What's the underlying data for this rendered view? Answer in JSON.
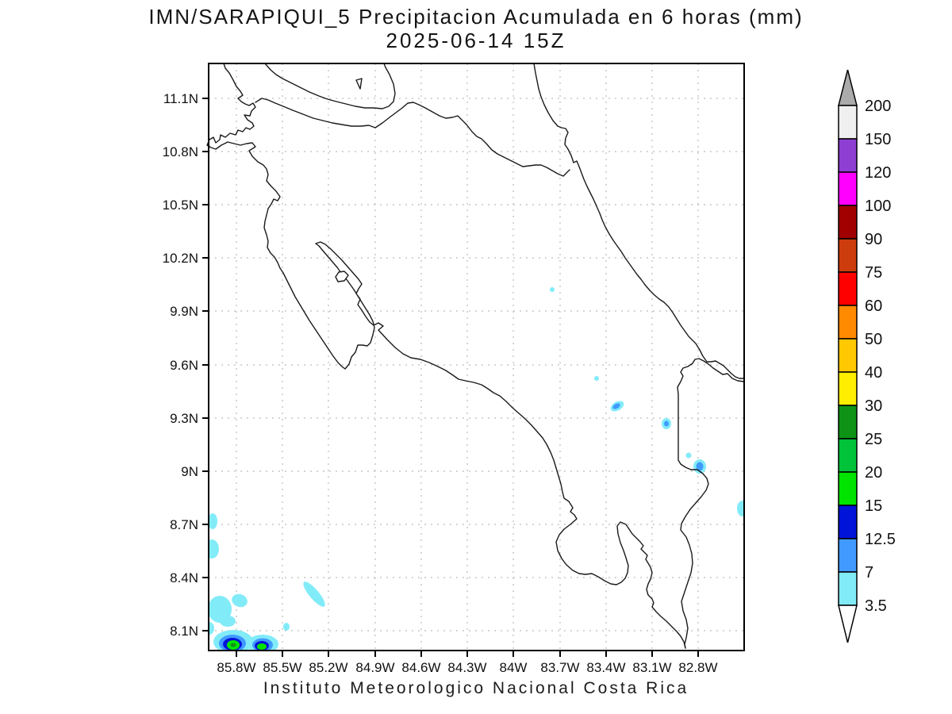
{
  "title": {
    "line1": "IMN/SARAPIQUI_5 Precipitacion Acumulada en 6 horas (mm)",
    "line2": "2025-06-14 15Z"
  },
  "footer": "Instituto Meteorologico Nacional Costa Rica",
  "axes": {
    "lat_ticks": [
      "11.1N",
      "10.8N",
      "10.5N",
      "10.2N",
      "9.9N",
      "9.6N",
      "9.3N",
      "9N",
      "8.7N",
      "8.4N",
      "8.1N"
    ],
    "lon_ticks": [
      "85.8W",
      "85.5W",
      "85.2W",
      "84.9W",
      "84.6W",
      "84.3W",
      "84W",
      "83.7W",
      "83.4W",
      "83.1W",
      "82.8W"
    ]
  },
  "colorbar": {
    "labels_top_to_bottom": [
      "200",
      "150",
      "120",
      "100",
      "90",
      "75",
      "60",
      "50",
      "40",
      "30",
      "25",
      "20",
      "15",
      "12.5",
      "7",
      "3.5"
    ],
    "segments_top_to_bottom": [
      {
        "range": "150-200",
        "color": "#F0F0F0"
      },
      {
        "range": "120-150",
        "color": "#8E3ED2"
      },
      {
        "range": "100-120",
        "color": "#FF00FF"
      },
      {
        "range": "90-100",
        "color": "#A00000"
      },
      {
        "range": "75-90",
        "color": "#CC3C0C"
      },
      {
        "range": "60-75",
        "color": "#FF0000"
      },
      {
        "range": "50-60",
        "color": "#FF8A00"
      },
      {
        "range": "40-50",
        "color": "#FFC800"
      },
      {
        "range": "30-40",
        "color": "#FFEE00"
      },
      {
        "range": "25-30",
        "color": "#0E9316"
      },
      {
        "range": "20-25",
        "color": "#00C33A"
      },
      {
        "range": "15-20",
        "color": "#00E400"
      },
      {
        "range": "12.5-15",
        "color": "#0013D9"
      },
      {
        "range": "7-12.5",
        "color": "#409AFF"
      },
      {
        "range": "3.5-7",
        "color": "#82EBF8"
      }
    ],
    "overflow_top_color": "#ABABAB",
    "underflow_bottom_color": "#FFFFFF"
  },
  "colors": {
    "cyan": "#82EBF8",
    "blue": "#409AFF",
    "navy": "#0013D9",
    "green": "#00E400",
    "dark_green": "#0E9316",
    "coastline": "#1a1a1a",
    "grid": "#bcbcbc",
    "frame": "#000000"
  },
  "chart_data": {
    "type": "heatmap",
    "title": "IMN/SARAPIQUI_5 Precipitacion Acumulada en 6 horas (mm)",
    "valid_time": "2025-06-14 15Z",
    "region": "Costa Rica",
    "lon_range_deg_w": [
      86.0,
      82.5
    ],
    "lat_range_deg_n": [
      8.0,
      11.3
    ],
    "grid_interval_deg": 0.3,
    "grid_style": "dotted",
    "legend_position": "right",
    "levels_mm": [
      3.5,
      7,
      12.5,
      15,
      20,
      25,
      30,
      40,
      50,
      60,
      75,
      90,
      100,
      120,
      150,
      200
    ],
    "precip_features": [
      {
        "lon": -85.82,
        "lat": 8.03,
        "mm_range": "15-25",
        "note": "strong cell SW of Nicoya, clipped by frame"
      },
      {
        "lon": -85.63,
        "lat": 8.02,
        "mm_range": "15-20",
        "note": "second strong cell, clipped by frame"
      },
      {
        "lon": -85.91,
        "lat": 8.22,
        "mm_range": "3.5-7"
      },
      {
        "lon": -85.78,
        "lat": 8.27,
        "mm_range": "3.5-7"
      },
      {
        "lon": -85.95,
        "lat": 8.72,
        "mm_range": "3.5-7",
        "note": "at left frame edge"
      },
      {
        "lon": -85.96,
        "lat": 8.56,
        "mm_range": "3.5-7",
        "note": "at left frame edge"
      },
      {
        "lon": -85.3,
        "lat": 8.31,
        "mm_range": "3.5-7",
        "note": "diagonal streak"
      },
      {
        "lon": -85.48,
        "lat": 8.12,
        "mm_range": "3.5-7"
      },
      {
        "lon": -83.75,
        "lat": 10.02,
        "mm_range": "3.5-7",
        "note": "tiny dot"
      },
      {
        "lon": -83.46,
        "lat": 9.52,
        "mm_range": "3.5-7",
        "note": "tiny dot"
      },
      {
        "lon": -83.33,
        "lat": 9.36,
        "mm_range": "7-12.5"
      },
      {
        "lon": -83.01,
        "lat": 9.27,
        "mm_range": "7-12.5"
      },
      {
        "lon": -82.87,
        "lat": 9.09,
        "mm_range": "3.5-7"
      },
      {
        "lon": -82.79,
        "lat": 9.02,
        "mm_range": "7-12.5"
      },
      {
        "lon": -82.52,
        "lat": 8.79,
        "mm_range": "3.5-7",
        "note": "at right frame edge"
      }
    ]
  }
}
